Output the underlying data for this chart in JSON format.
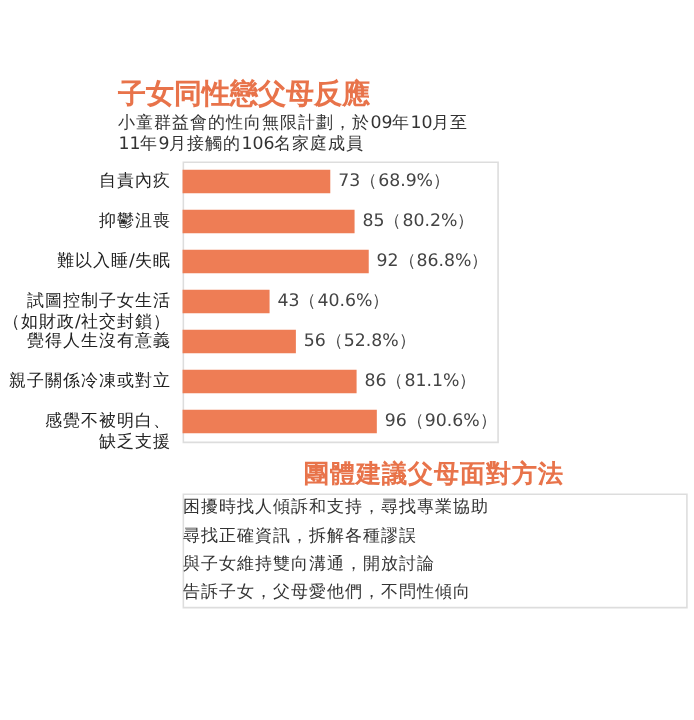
{
  "chart_data": {
    "type": "bar",
    "orientation": "horizontal",
    "title": "子女同性戀父母反應",
    "subtitle": "小童群益會的性向無限計劃，於09年10月至\n11年9月接觸的106名家庭成員",
    "categories": [
      "自責內疚",
      "抑鬱沮喪",
      "難以入睡/失眠",
      "試圖控制子女生活（如財政/社交封鎖）",
      "覺得人生沒有意義",
      "親子關係冷凍或對立",
      "感覺不被明白、缺乏支援"
    ],
    "values": [
      73,
      85,
      92,
      43,
      56,
      86,
      96
    ],
    "value_labels": [
      "73（68.9%）",
      "85（80.2%）",
      "92（86.8%）",
      "43（40.6%）",
      "56（52.8%）",
      "86（81.1%）",
      "96（90.6%）"
    ],
    "color": "#ee7d55",
    "annotations": [
      "團體建議父母面對方法",
      "困擾時找人傾訴和支持，尋找專業協助",
      "尋找正確資訊，拆解各種謬誤",
      "與子女維持雙向溝通，開放討論",
      "告訴子女，父母愛他們，不問性傾向"
    ]
  }
}
